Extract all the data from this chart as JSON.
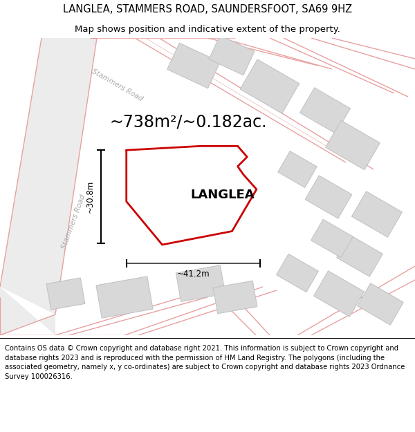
{
  "title_line1": "LANGLEA, STAMMERS ROAD, SAUNDERSFOOT, SA69 9HZ",
  "title_line2": "Map shows position and indicative extent of the property.",
  "area_text": "~738m²/~0.182ac.",
  "property_label": "LANGLEA",
  "dim_width": "~41.2m",
  "dim_height": "~30.8m",
  "footer_text": "Contains OS data © Crown copyright and database right 2021. This information is subject to Crown copyright and database rights 2023 and is reproduced with the permission of HM Land Registry. The polygons (including the associated geometry, namely x, y co-ordinates) are subject to Crown copyright and database rights 2023 Ordnance Survey 100026316.",
  "bg_color": "#f8f8f8",
  "road_fill": "#f0f0f0",
  "road_line": "#e8a0a0",
  "road_line2": "#f0b8b8",
  "building_color": "#d8d8d8",
  "building_edge": "#c0c0c0",
  "property_color": "#cc0000",
  "property_lw": 2.0,
  "title_fontsize": 10.5,
  "subtitle_fontsize": 9.5,
  "area_fontsize": 17,
  "label_fontsize": 13,
  "dim_fontsize": 8.5,
  "footer_fontsize": 7.2,
  "road_label_color": "#aaaaaa",
  "road_label_size": 7.5
}
